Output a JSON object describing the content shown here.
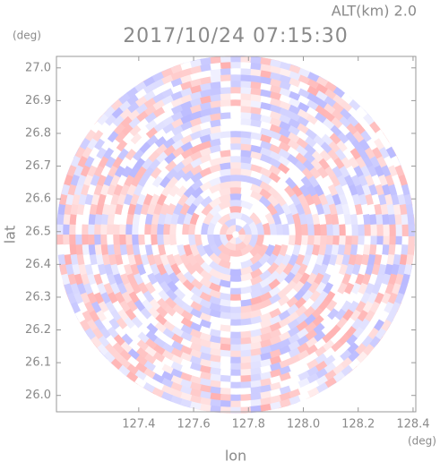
{
  "chart_data": {
    "type": "radar-ppi",
    "title": "2017/10/24 07:15:30",
    "subtitle": "ALT(km) 2.0",
    "x_label": "lon",
    "y_label": "lat",
    "x_unit": "(deg)",
    "y_unit": "(deg)",
    "xlim": [
      127.1,
      128.41
    ],
    "ylim": [
      25.95,
      27.035
    ],
    "xticks": [
      127.4,
      127.6,
      127.8,
      {
        "value": 128.0,
        "label": "128.0"
      },
      128.2,
      128.4
    ],
    "yticks": [
      {
        "value": 26.0,
        "label": "26.0"
      },
      26.1,
      26.2,
      26.3,
      26.4,
      26.5,
      26.6,
      26.7,
      26.8,
      26.9,
      {
        "value": 27.0,
        "label": "27.0"
      }
    ]
  }
}
